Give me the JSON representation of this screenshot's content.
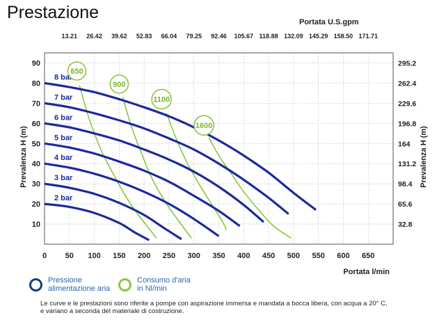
{
  "chart_data": {
    "type": "line",
    "title": "Prestazione",
    "xlabel": "Portata  l/min",
    "ylabel": "Prevalenza H (m)",
    "ylabel_right": "Prevalenza H (m)",
    "top_axis_title": "Portata U.S.gpm",
    "xlim": [
      0,
      700
    ],
    "ylim": [
      0,
      95
    ],
    "x_ticks": [
      0,
      50,
      100,
      150,
      200,
      250,
      300,
      350,
      400,
      450,
      500,
      550,
      600,
      650
    ],
    "y_ticks": [
      10,
      20,
      30,
      40,
      50,
      60,
      70,
      80,
      90
    ],
    "top_ticks": [
      {
        "x": 50,
        "label": "13.21"
      },
      {
        "x": 100,
        "label": "26.42"
      },
      {
        "x": 150,
        "label": "39.62"
      },
      {
        "x": 200,
        "label": "52.83"
      },
      {
        "x": 250,
        "label": "66.04"
      },
      {
        "x": 300,
        "label": "79.25"
      },
      {
        "x": 350,
        "label": "92.46"
      },
      {
        "x": 400,
        "label": "105.67"
      },
      {
        "x": 450,
        "label": "118.88"
      },
      {
        "x": 500,
        "label": "132.09"
      },
      {
        "x": 550,
        "label": "145.29"
      },
      {
        "x": 600,
        "label": "158.50"
      },
      {
        "x": 650,
        "label": "171.71"
      }
    ],
    "right_ticks": [
      {
        "y": 10,
        "label": "32.8"
      },
      {
        "y": 20,
        "label": "65.6"
      },
      {
        "y": 30,
        "label": "98.4"
      },
      {
        "y": 40,
        "label": "131.2"
      },
      {
        "y": 50,
        "label": "164"
      },
      {
        "y": 60,
        "label": "196.8"
      },
      {
        "y": 70,
        "label": "229.6"
      },
      {
        "y": 80,
        "label": "262.4"
      },
      {
        "y": 90,
        "label": "295.2"
      }
    ],
    "grid": true,
    "pressure_color": "#1c2a9a",
    "air_color": "#8cc63f",
    "pressure_series": [
      {
        "name": "2 bar",
        "points": [
          [
            0,
            20
          ],
          [
            50,
            18.5
          ],
          [
            100,
            15.5
          ],
          [
            150,
            10.5
          ],
          [
            180,
            6
          ],
          [
            210,
            2
          ]
        ]
      },
      {
        "name": "3 bar",
        "points": [
          [
            0,
            30
          ],
          [
            50,
            28
          ],
          [
            100,
            25
          ],
          [
            150,
            20.5
          ],
          [
            200,
            14.5
          ],
          [
            240,
            8
          ],
          [
            275,
            2.5
          ]
        ]
      },
      {
        "name": "4 bar",
        "points": [
          [
            0,
            40
          ],
          [
            50,
            38
          ],
          [
            100,
            35
          ],
          [
            150,
            31
          ],
          [
            200,
            26
          ],
          [
            250,
            20
          ],
          [
            300,
            12.5
          ],
          [
            350,
            4
          ]
        ]
      },
      {
        "name": "5 bar",
        "points": [
          [
            0,
            50
          ],
          [
            50,
            48
          ],
          [
            100,
            45
          ],
          [
            150,
            41
          ],
          [
            200,
            36.5
          ],
          [
            250,
            31
          ],
          [
            300,
            24
          ],
          [
            350,
            16.5
          ],
          [
            392,
            9
          ]
        ]
      },
      {
        "name": "6 bar",
        "points": [
          [
            0,
            60
          ],
          [
            50,
            58
          ],
          [
            100,
            55
          ],
          [
            150,
            51.5
          ],
          [
            200,
            47
          ],
          [
            250,
            42
          ],
          [
            300,
            36
          ],
          [
            350,
            28.5
          ],
          [
            400,
            19.5
          ],
          [
            440,
            11
          ]
        ]
      },
      {
        "name": "7 bar",
        "points": [
          [
            0,
            70
          ],
          [
            50,
            68
          ],
          [
            100,
            65
          ],
          [
            150,
            61.5
          ],
          [
            200,
            57.5
          ],
          [
            250,
            52.5
          ],
          [
            300,
            47
          ],
          [
            350,
            40
          ],
          [
            400,
            32
          ],
          [
            450,
            23
          ],
          [
            490,
            15
          ]
        ]
      },
      {
        "name": "8 bar",
        "points": [
          [
            0,
            80
          ],
          [
            50,
            78
          ],
          [
            100,
            75.5
          ],
          [
            150,
            72
          ],
          [
            200,
            68
          ],
          [
            250,
            63.5
          ],
          [
            300,
            58
          ],
          [
            350,
            51.5
          ],
          [
            400,
            44
          ],
          [
            450,
            35.5
          ],
          [
            500,
            25.5
          ],
          [
            545,
            17
          ]
        ]
      }
    ],
    "air_series": [
      {
        "name": "650",
        "bubble": [
          65,
          86
        ],
        "points": [
          [
            70,
            79
          ],
          [
            90,
            62
          ],
          [
            115,
            46
          ],
          [
            140,
            34
          ],
          [
            165,
            23
          ],
          [
            190,
            14
          ],
          [
            225,
            3
          ]
        ]
      },
      {
        "name": "900",
        "bubble": [
          150,
          79.5
        ],
        "points": [
          [
            157,
            73
          ],
          [
            175,
            58
          ],
          [
            195,
            45
          ],
          [
            215,
            33
          ],
          [
            240,
            22
          ],
          [
            265,
            13
          ],
          [
            295,
            3
          ]
        ]
      },
      {
        "name": "1100",
        "bubble": [
          235,
          72
        ],
        "points": [
          [
            245,
            65
          ],
          [
            262,
            54
          ],
          [
            285,
            41
          ],
          [
            310,
            30
          ],
          [
            335,
            20
          ],
          [
            358,
            11
          ],
          [
            365,
            7
          ]
        ]
      },
      {
        "name": "1600",
        "bubble": [
          320,
          59
        ],
        "points": [
          [
            330,
            53
          ],
          [
            350,
            44
          ],
          [
            375,
            35
          ],
          [
            400,
            26
          ],
          [
            430,
            17
          ],
          [
            460,
            9
          ],
          [
            495,
            3
          ]
        ]
      }
    ]
  },
  "legend": {
    "pressure_label": "Pressione\nalimentazione aria",
    "air_label": "Consumo d'aria\nin Nl/min"
  },
  "footnote": "Le curve e le prestazioni sono riferite a pompe con aspirazione immersa e mandata a bocca libera, con acqua a 20° C,\ne variano a seconda del materiale di costruzione."
}
